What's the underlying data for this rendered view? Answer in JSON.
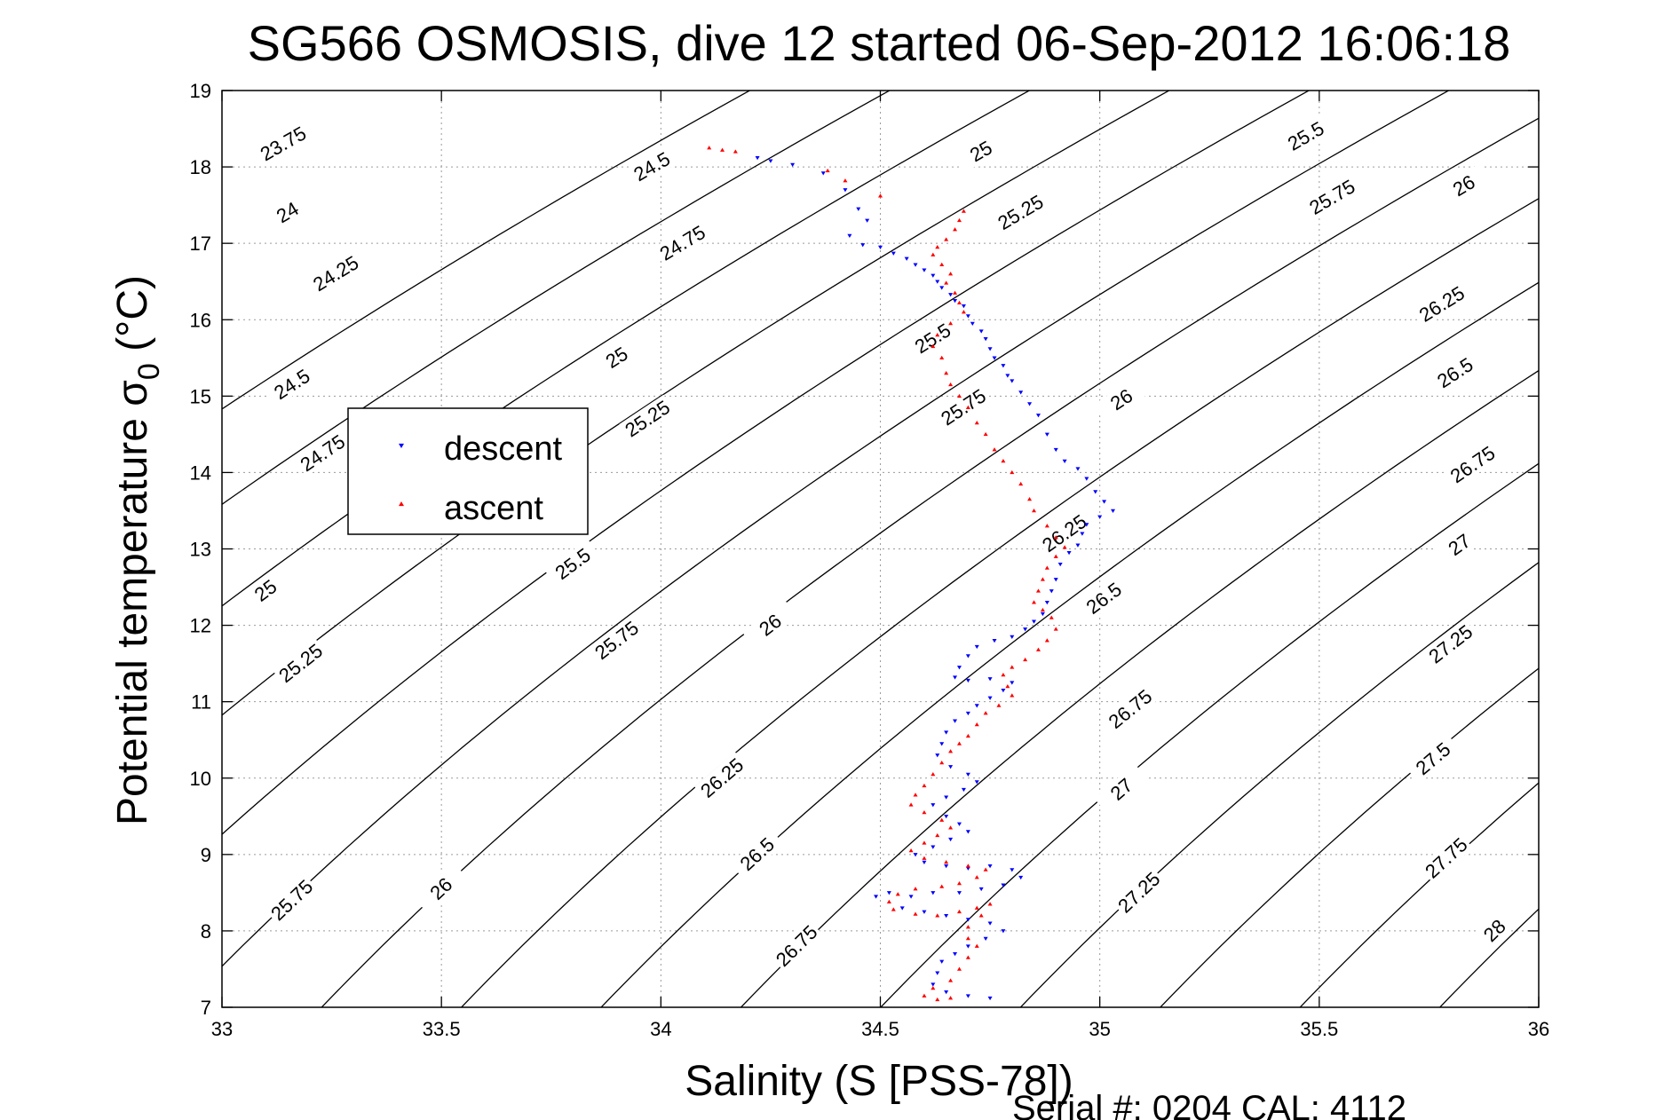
{
  "chart_data": {
    "type": "scatter",
    "title": "SG566 OSMOSIS, dive 12 started 06-Sep-2012 16:06:18",
    "xlabel": "Salinity (S [PSS-78])",
    "ylabel_main": "Potential temperature σ",
    "ylabel_sub": "0",
    "ylabel_unit": " (°C)",
    "footer": "Serial #: 0204  CAL: 4112",
    "xlim": [
      33,
      36
    ],
    "ylim": [
      7,
      19
    ],
    "xticks": [
      33,
      33.5,
      34,
      34.5,
      35,
      35.5,
      36
    ],
    "xtick_labels": [
      "33",
      "33.5",
      "34",
      "34.5",
      "35",
      "35.5",
      "36"
    ],
    "yticks": [
      7,
      8,
      9,
      10,
      11,
      12,
      13,
      14,
      15,
      16,
      17,
      18,
      19
    ],
    "ytick_labels": [
      "7",
      "8",
      "9",
      "10",
      "11",
      "12",
      "13",
      "14",
      "15",
      "16",
      "17",
      "18",
      "19"
    ],
    "grid": true,
    "legend_position": "upper-left",
    "contours": {
      "levels": [
        23.75,
        24,
        24.25,
        24.5,
        24.75,
        25,
        25.25,
        25.5,
        25.75,
        26,
        26.25,
        26.5,
        26.75,
        27,
        27.25,
        27.5,
        27.75,
        28
      ],
      "color": "#000000",
      "labels": [
        {
          "text": "23.75",
          "s": 33.14,
          "t": 18.3
        },
        {
          "text": "24",
          "s": 33.15,
          "t": 17.4
        },
        {
          "text": "24.25",
          "s": 33.26,
          "t": 16.6
        },
        {
          "text": "24.5",
          "s": 33.16,
          "t": 15.15
        },
        {
          "text": "24.75",
          "s": 33.23,
          "t": 14.25
        },
        {
          "text": "25",
          "s": 33.1,
          "t": 12.45
        },
        {
          "text": "25.25",
          "s": 33.18,
          "t": 11.5
        },
        {
          "text": "25.75",
          "s": 33.16,
          "t": 8.4
        },
        {
          "text": "26",
          "s": 33.5,
          "t": 8.55
        },
        {
          "text": "24.5",
          "s": 33.98,
          "t": 18.0
        },
        {
          "text": "24.75",
          "s": 34.05,
          "t": 17.0
        },
        {
          "text": "25",
          "s": 33.9,
          "t": 15.5
        },
        {
          "text": "25.25",
          "s": 33.97,
          "t": 14.7
        },
        {
          "text": "25.5",
          "s": 33.8,
          "t": 12.8
        },
        {
          "text": "25.75",
          "s": 33.9,
          "t": 11.8
        },
        {
          "text": "26",
          "s": 34.25,
          "t": 12.0
        },
        {
          "text": "26.25",
          "s": 34.14,
          "t": 10.0
        },
        {
          "text": "26.5",
          "s": 34.22,
          "t": 9.0
        },
        {
          "text": "26.75",
          "s": 34.31,
          "t": 7.8
        },
        {
          "text": "25",
          "s": 34.73,
          "t": 18.2
        },
        {
          "text": "25.25",
          "s": 34.82,
          "t": 17.4
        },
        {
          "text": "25.5",
          "s": 34.62,
          "t": 15.75
        },
        {
          "text": "25.75",
          "s": 34.69,
          "t": 14.85
        },
        {
          "text": "26",
          "s": 35.05,
          "t": 14.95
        },
        {
          "text": "26.25",
          "s": 34.92,
          "t": 13.2
        },
        {
          "text": "26.5",
          "s": 35.01,
          "t": 12.35
        },
        {
          "text": "26.75",
          "s": 35.07,
          "t": 10.9
        },
        {
          "text": "27",
          "s": 35.05,
          "t": 9.85
        },
        {
          "text": "27.25",
          "s": 35.09,
          "t": 8.5
        },
        {
          "text": "25.5",
          "s": 35.47,
          "t": 18.4
        },
        {
          "text": "25.75",
          "s": 35.53,
          "t": 17.6
        },
        {
          "text": "26",
          "s": 35.83,
          "t": 17.75
        },
        {
          "text": "26.25",
          "s": 35.78,
          "t": 16.2
        },
        {
          "text": "26.5",
          "s": 35.81,
          "t": 15.3
        },
        {
          "text": "26.75",
          "s": 35.85,
          "t": 14.1
        },
        {
          "text": "27",
          "s": 35.82,
          "t": 13.05
        },
        {
          "text": "27.25",
          "s": 35.8,
          "t": 11.75
        },
        {
          "text": "27.5",
          "s": 35.76,
          "t": 10.25
        },
        {
          "text": "27.75",
          "s": 35.79,
          "t": 8.95
        },
        {
          "text": "28",
          "s": 35.9,
          "t": 8.0
        }
      ]
    },
    "series": [
      {
        "name": "descent",
        "color": "#0000ff",
        "marker": "triangle-down",
        "points": [
          [
            34.22,
            18.12
          ],
          [
            34.25,
            18.08
          ],
          [
            34.3,
            18.03
          ],
          [
            34.37,
            17.92
          ],
          [
            34.42,
            17.7
          ],
          [
            34.45,
            17.45
          ],
          [
            34.47,
            17.3
          ],
          [
            34.43,
            17.1
          ],
          [
            34.46,
            16.98
          ],
          [
            34.5,
            16.95
          ],
          [
            34.53,
            16.87
          ],
          [
            34.56,
            16.8
          ],
          [
            34.58,
            16.72
          ],
          [
            34.6,
            16.65
          ],
          [
            34.62,
            16.58
          ],
          [
            34.63,
            16.5
          ],
          [
            34.64,
            16.42
          ],
          [
            34.66,
            16.33
          ],
          [
            34.67,
            16.25
          ],
          [
            34.69,
            16.18
          ],
          [
            34.7,
            16.05
          ],
          [
            34.71,
            15.95
          ],
          [
            34.73,
            15.85
          ],
          [
            34.74,
            15.75
          ],
          [
            34.75,
            15.62
          ],
          [
            34.76,
            15.5
          ],
          [
            34.78,
            15.4
          ],
          [
            34.79,
            15.27
          ],
          [
            34.8,
            15.2
          ],
          [
            34.82,
            15.05
          ],
          [
            34.84,
            14.9
          ],
          [
            34.86,
            14.75
          ],
          [
            34.88,
            14.5
          ],
          [
            34.9,
            14.3
          ],
          [
            34.92,
            14.15
          ],
          [
            34.95,
            14.05
          ],
          [
            34.97,
            13.92
          ],
          [
            34.99,
            13.75
          ],
          [
            35.01,
            13.62
          ],
          [
            35.03,
            13.5
          ],
          [
            35.0,
            13.42
          ],
          [
            34.97,
            13.32
          ],
          [
            34.96,
            13.2
          ],
          [
            34.95,
            13.05
          ],
          [
            34.93,
            12.95
          ],
          [
            34.91,
            12.8
          ],
          [
            34.9,
            12.6
          ],
          [
            34.89,
            12.45
          ],
          [
            34.88,
            12.3
          ],
          [
            34.87,
            12.15
          ],
          [
            34.85,
            12.05
          ],
          [
            34.83,
            11.95
          ],
          [
            34.8,
            11.85
          ],
          [
            34.76,
            11.8
          ],
          [
            34.72,
            11.72
          ],
          [
            34.7,
            11.6
          ],
          [
            34.68,
            11.45
          ],
          [
            34.67,
            11.32
          ],
          [
            34.7,
            11.28
          ],
          [
            34.75,
            11.3
          ],
          [
            34.8,
            11.25
          ],
          [
            34.78,
            11.15
          ],
          [
            34.75,
            11.05
          ],
          [
            34.72,
            10.95
          ],
          [
            34.7,
            10.85
          ],
          [
            34.67,
            10.75
          ],
          [
            34.65,
            10.6
          ],
          [
            34.64,
            10.45
          ],
          [
            34.63,
            10.3
          ],
          [
            34.66,
            10.15
          ],
          [
            34.7,
            10.05
          ],
          [
            34.72,
            9.95
          ],
          [
            34.69,
            9.85
          ],
          [
            34.65,
            9.75
          ],
          [
            34.62,
            9.65
          ],
          [
            34.65,
            9.5
          ],
          [
            34.68,
            9.4
          ],
          [
            34.7,
            9.3
          ],
          [
            34.66,
            9.2
          ],
          [
            34.62,
            9.1
          ],
          [
            34.58,
            9.0
          ],
          [
            34.6,
            8.9
          ],
          [
            34.65,
            8.85
          ],
          [
            34.7,
            8.82
          ],
          [
            34.75,
            8.85
          ],
          [
            34.8,
            8.8
          ],
          [
            34.82,
            8.7
          ],
          [
            34.78,
            8.6
          ],
          [
            34.73,
            8.55
          ],
          [
            34.68,
            8.5
          ],
          [
            34.62,
            8.5
          ],
          [
            34.57,
            8.45
          ],
          [
            34.52,
            8.5
          ],
          [
            34.49,
            8.45
          ],
          [
            34.55,
            8.3
          ],
          [
            34.6,
            8.25
          ],
          [
            34.65,
            8.2
          ],
          [
            34.7,
            8.15
          ],
          [
            34.75,
            8.1
          ],
          [
            34.78,
            8.0
          ],
          [
            34.74,
            7.9
          ],
          [
            34.7,
            7.8
          ],
          [
            34.67,
            7.7
          ],
          [
            34.64,
            7.6
          ],
          [
            34.63,
            7.45
          ],
          [
            34.62,
            7.3
          ],
          [
            34.65,
            7.2
          ],
          [
            34.7,
            7.15
          ],
          [
            34.75,
            7.12
          ]
        ]
      },
      {
        "name": "ascent",
        "color": "#ff0000",
        "marker": "triangle-up",
        "points": [
          [
            34.11,
            18.25
          ],
          [
            34.14,
            18.22
          ],
          [
            34.17,
            18.2
          ],
          [
            34.38,
            17.95
          ],
          [
            34.42,
            17.82
          ],
          [
            34.5,
            17.62
          ],
          [
            34.69,
            17.42
          ],
          [
            34.68,
            17.3
          ],
          [
            34.67,
            17.18
          ],
          [
            34.65,
            17.05
          ],
          [
            34.63,
            16.95
          ],
          [
            34.62,
            16.85
          ],
          [
            34.64,
            16.72
          ],
          [
            34.66,
            16.6
          ],
          [
            34.65,
            16.48
          ],
          [
            34.67,
            16.35
          ],
          [
            34.68,
            16.22
          ],
          [
            34.69,
            16.1
          ],
          [
            34.66,
            15.95
          ],
          [
            34.63,
            15.8
          ],
          [
            34.62,
            15.65
          ],
          [
            34.64,
            15.5
          ],
          [
            34.65,
            15.3
          ],
          [
            34.66,
            15.15
          ],
          [
            34.68,
            15.0
          ],
          [
            34.7,
            14.85
          ],
          [
            34.72,
            14.65
          ],
          [
            34.74,
            14.5
          ],
          [
            34.76,
            14.3
          ],
          [
            34.78,
            14.15
          ],
          [
            34.8,
            14.0
          ],
          [
            34.82,
            13.85
          ],
          [
            34.84,
            13.65
          ],
          [
            34.85,
            13.5
          ],
          [
            34.88,
            13.3
          ],
          [
            34.9,
            13.15
          ],
          [
            34.92,
            13.02
          ],
          [
            34.9,
            12.9
          ],
          [
            34.88,
            12.75
          ],
          [
            34.87,
            12.6
          ],
          [
            34.86,
            12.45
          ],
          [
            34.85,
            12.3
          ],
          [
            34.87,
            12.2
          ],
          [
            34.89,
            12.1
          ],
          [
            34.9,
            11.95
          ],
          [
            34.88,
            11.8
          ],
          [
            34.86,
            11.68
          ],
          [
            34.83,
            11.55
          ],
          [
            34.8,
            11.45
          ],
          [
            34.78,
            11.35
          ],
          [
            34.79,
            11.2
          ],
          [
            34.8,
            11.08
          ],
          [
            34.77,
            10.95
          ],
          [
            34.74,
            10.85
          ],
          [
            34.72,
            10.7
          ],
          [
            34.7,
            10.55
          ],
          [
            34.68,
            10.45
          ],
          [
            34.66,
            10.35
          ],
          [
            34.64,
            10.2
          ],
          [
            34.62,
            10.05
          ],
          [
            34.6,
            9.9
          ],
          [
            34.58,
            9.78
          ],
          [
            34.57,
            9.65
          ],
          [
            34.6,
            9.55
          ],
          [
            34.64,
            9.45
          ],
          [
            34.66,
            9.35
          ],
          [
            34.63,
            9.25
          ],
          [
            34.6,
            9.15
          ],
          [
            34.57,
            9.05
          ],
          [
            34.6,
            8.95
          ],
          [
            34.65,
            8.9
          ],
          [
            34.7,
            8.85
          ],
          [
            34.74,
            8.8
          ],
          [
            34.72,
            8.7
          ],
          [
            34.68,
            8.62
          ],
          [
            34.64,
            8.58
          ],
          [
            34.58,
            8.55
          ],
          [
            34.54,
            8.48
          ],
          [
            34.52,
            8.38
          ],
          [
            34.53,
            8.28
          ],
          [
            34.58,
            8.22
          ],
          [
            34.63,
            8.2
          ],
          [
            34.68,
            8.25
          ],
          [
            34.72,
            8.3
          ],
          [
            34.75,
            8.35
          ],
          [
            34.73,
            8.2
          ],
          [
            34.7,
            8.05
          ],
          [
            34.7,
            7.9
          ],
          [
            34.72,
            7.8
          ],
          [
            34.7,
            7.65
          ],
          [
            34.68,
            7.5
          ],
          [
            34.66,
            7.35
          ],
          [
            34.62,
            7.25
          ],
          [
            34.6,
            7.15
          ],
          [
            34.63,
            7.1
          ],
          [
            34.66,
            7.12
          ]
        ]
      }
    ]
  }
}
